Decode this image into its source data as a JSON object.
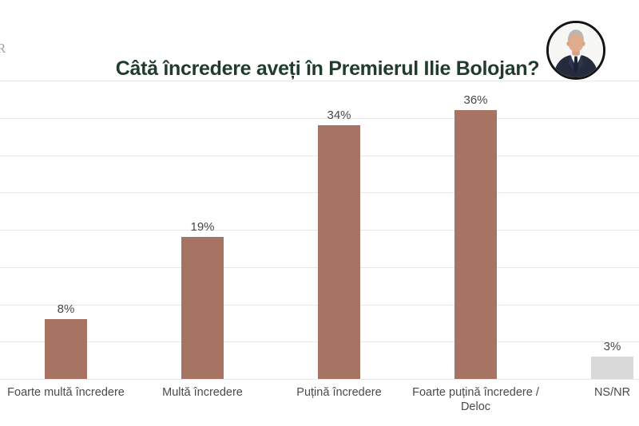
{
  "watermark": "R",
  "header": {
    "title": "Câtă încredere aveți în Premierul Ilie Bolojan?"
  },
  "avatar": {
    "name": "ilie-bolojan-portrait"
  },
  "chart_data": {
    "type": "bar",
    "title": "Câtă încredere aveți în Premierul Ilie Bolojan?",
    "categories": [
      "Foarte multă încredere",
      "Multă încredere",
      "Puțină încredere",
      "Foarte puțină încredere /\nDeloc",
      "NS/NR"
    ],
    "values": [
      8,
      19,
      34,
      36,
      3
    ],
    "value_labels": [
      "8%",
      "19%",
      "34%",
      "36%",
      "3%"
    ],
    "bar_colors": [
      "#a77463",
      "#a77463",
      "#a77463",
      "#a77463",
      "#d9d9d9"
    ],
    "xlabel": "",
    "ylabel": "",
    "ylim": [
      0,
      40
    ],
    "ytick_step": 5,
    "grid": true,
    "legend": false
  },
  "colors": {
    "accent_brown": "#a77463",
    "neutral_gray": "#d9d9d9",
    "title_green": "#1f3c2d",
    "gridline": "#e8e8e8",
    "label_gray": "#4a4a4a"
  }
}
